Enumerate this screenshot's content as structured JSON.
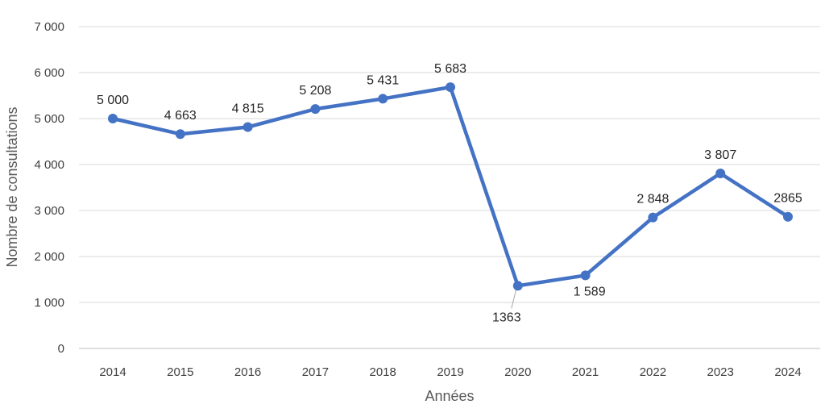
{
  "chart_data": {
    "type": "line",
    "title": "",
    "xlabel": "Années",
    "ylabel": "Nombre de consultations",
    "categories": [
      "2014",
      "2015",
      "2016",
      "2017",
      "2018",
      "2019",
      "2020",
      "2021",
      "2022",
      "2023",
      "2024"
    ],
    "series": [
      {
        "values": [
          5000,
          4663,
          4815,
          5208,
          5431,
          5683,
          1363,
          1589,
          2848,
          3807,
          2865
        ],
        "data_labels": [
          "5 000",
          "4 663",
          "4 815",
          "5 208",
          "5 431",
          "5 683",
          "1363",
          "1 589",
          "2 848",
          "3 807",
          "2865"
        ],
        "color": "#4472c4"
      }
    ],
    "ylim": [
      0,
      7000
    ],
    "yticks": [
      0,
      1000,
      2000,
      3000,
      4000,
      5000,
      6000,
      7000
    ],
    "ytick_labels": [
      "0",
      "1 000",
      "2 000",
      "3 000",
      "4 000",
      "5 000",
      "6 000",
      "7 000"
    ],
    "grid": true,
    "legend": "none",
    "colors": {
      "line": "#4472c4",
      "grid": "#d9d9d9",
      "text": "#404040"
    }
  }
}
